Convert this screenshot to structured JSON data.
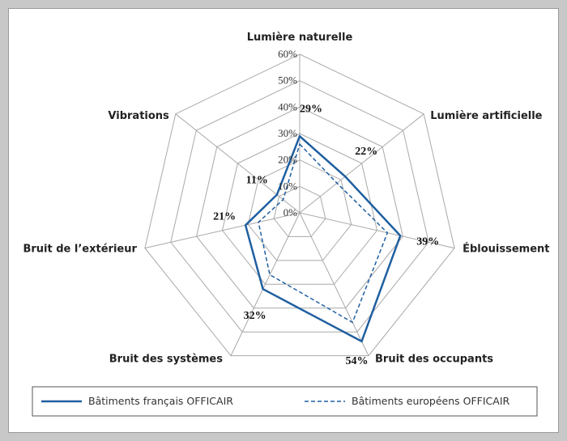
{
  "chart_data": {
    "type": "radar",
    "title": "",
    "categories": [
      "Lumière naturelle",
      "Lumière artificielle",
      "Éblouissement",
      "Bruit des occupants",
      "Bruit des systèmes",
      "Bruit de l’extérieur",
      "Vibrations"
    ],
    "radial_ticks": [
      "0%",
      "10%",
      "20%",
      "30%",
      "40%",
      "50%",
      "60%"
    ],
    "rlim": [
      0,
      60
    ],
    "grid": true,
    "legend_position": "bottom",
    "series": [
      {
        "name": "Bâtiments français OFFICAIR",
        "style": "solid",
        "color": "#1f5fa0",
        "values": [
          29,
          22,
          39,
          54,
          32,
          21,
          11
        ],
        "labels": [
          "29%",
          "22%",
          "39%",
          "54%",
          "32%",
          "21%",
          "11%"
        ]
      },
      {
        "name": "Bâtiments européens OFFICAIR",
        "style": "dashed",
        "color": "#1f5fa0",
        "values": [
          26,
          18,
          34,
          46,
          26,
          16,
          8
        ]
      }
    ]
  }
}
